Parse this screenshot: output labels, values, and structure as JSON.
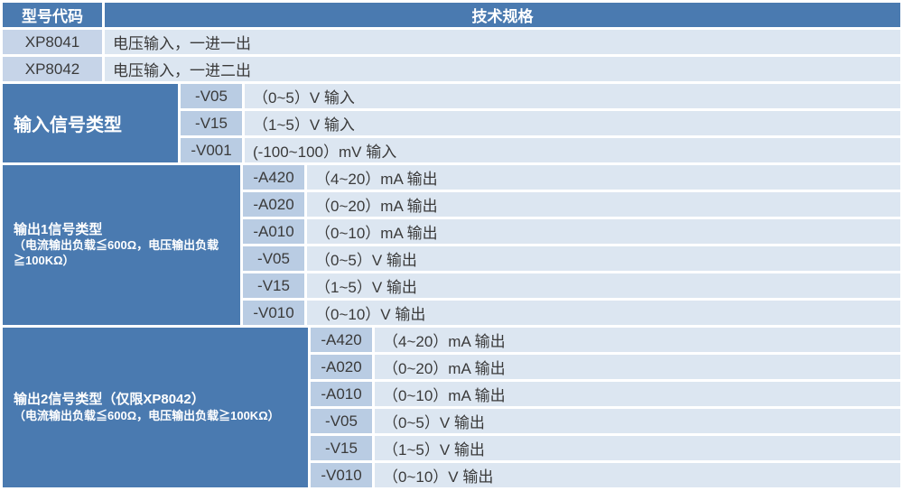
{
  "colors": {
    "header_bg": "#4a7ab0",
    "code_bg": "#b9cce3",
    "model_bg": "#c6d4e8",
    "spec_bg": "#dce6f1",
    "gap": "#ffffff",
    "text_dark": "#3a3a3a",
    "text_light": "#ffffff"
  },
  "table": {
    "header": {
      "col1": "型号代码",
      "col2": "技术规格"
    },
    "models": [
      {
        "code": "XP8041",
        "spec": "电压输入，一进一出"
      },
      {
        "code": "XP8042",
        "spec": "电压输入，一进二出"
      }
    ],
    "sections": [
      {
        "title": "输入信号类型",
        "subtitle": "",
        "rows": [
          {
            "code": "-V05",
            "spec": "（0~5）V 输入"
          },
          {
            "code": "-V15",
            "spec": "（1~5）V 输入"
          },
          {
            "code": "-V001",
            "spec": "(-100~100）mV 输入"
          }
        ]
      },
      {
        "title": "输出1信号类型",
        "subtitle": "（电流输出负载≦600Ω，电压输出负载≧100KΩ）",
        "rows": [
          {
            "code": "-A420",
            "spec": "（4~20）mA 输出"
          },
          {
            "code": "-A020",
            "spec": "（0~20）mA 输出"
          },
          {
            "code": "-A010",
            "spec": "（0~10）mA 输出"
          },
          {
            "code": "-V05",
            "spec": "（0~5）V 输出"
          },
          {
            "code": "-V15",
            "spec": "（1~5）V 输出"
          },
          {
            "code": "-V010",
            "spec": "（0~10）V 输出"
          }
        ]
      },
      {
        "title": "输出2信号类型（仅限XP8042）",
        "subtitle": "（电流输出负载≦600Ω，电压输出负载≧100KΩ）",
        "rows": [
          {
            "code": "-A420",
            "spec": "（4~20）mA 输出"
          },
          {
            "code": "-A020",
            "spec": "（0~20）mA 输出"
          },
          {
            "code": "-A010",
            "spec": "（0~10）mA 输出"
          },
          {
            "code": "-V05",
            "spec": "（0~5）V 输出"
          },
          {
            "code": "-V15",
            "spec": "（1~5）V 输出"
          },
          {
            "code": "-V010",
            "spec": "（0~10）V 输出"
          }
        ]
      }
    ]
  }
}
